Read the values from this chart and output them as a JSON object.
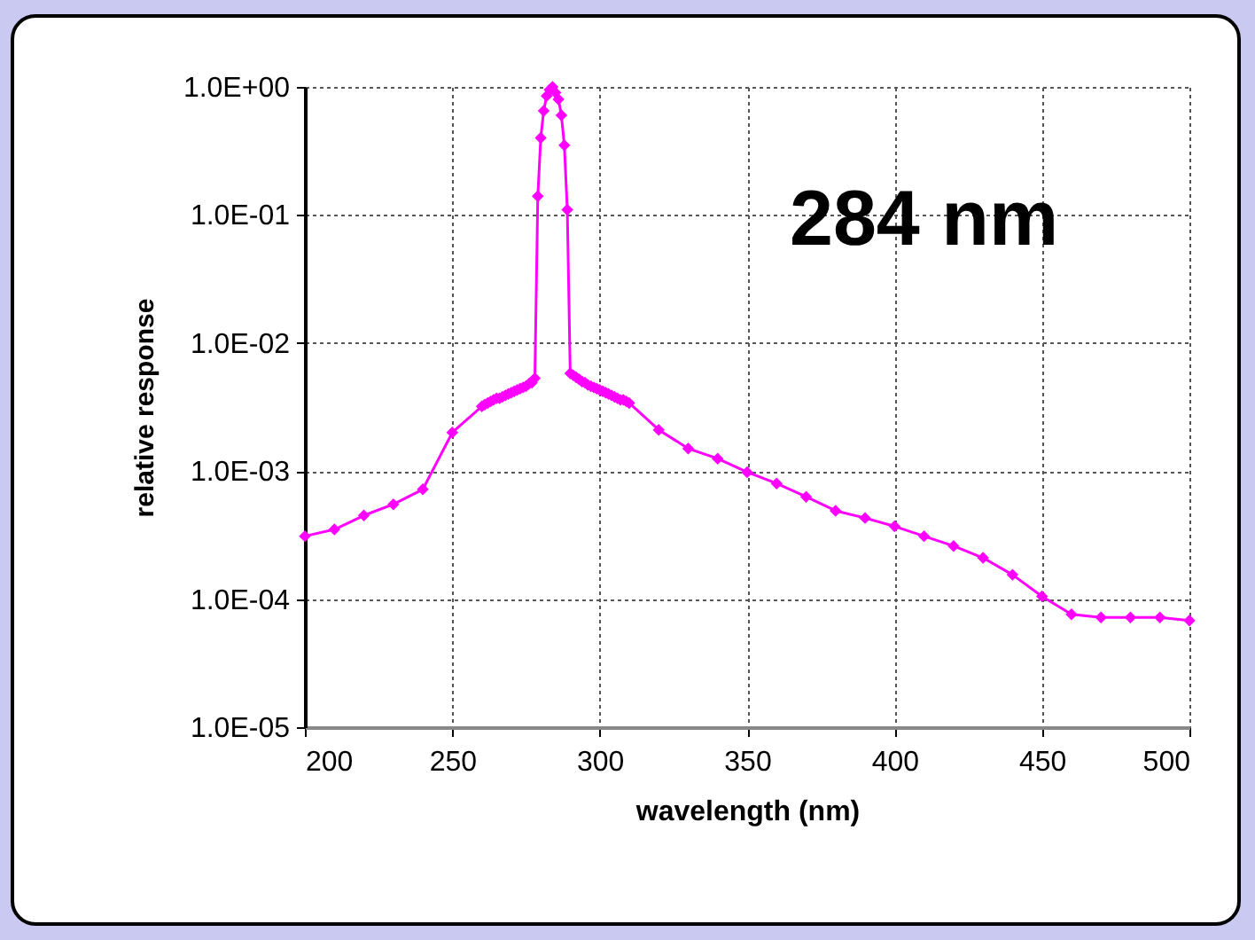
{
  "chart_data": {
    "type": "line",
    "xlabel": "wavelength (nm)",
    "ylabel": "relative response",
    "annotations": [
      "284 nm"
    ],
    "x": [
      200,
      210,
      220,
      230,
      240,
      250,
      260,
      261,
      262,
      263,
      264,
      265,
      266,
      267,
      268,
      269,
      270,
      271,
      272,
      273,
      274,
      275,
      276,
      277,
      278,
      279,
      280,
      281,
      282,
      283,
      284,
      285,
      286,
      287,
      288,
      289,
      290,
      291,
      292,
      293,
      294,
      295,
      296,
      297,
      298,
      299,
      300,
      301,
      302,
      303,
      304,
      305,
      306,
      307,
      308,
      309,
      310,
      320,
      330,
      340,
      350,
      360,
      370,
      380,
      390,
      400,
      410,
      420,
      430,
      440,
      450,
      460,
      470,
      480,
      490,
      500
    ],
    "series": [
      {
        "color": "#ff00ff",
        "values": [
          0.00031,
          0.00035,
          0.00045,
          0.00055,
          0.00072,
          0.002,
          0.0032,
          0.0033,
          0.0034,
          0.0035,
          0.0036,
          0.0037,
          0.0037,
          0.0038,
          0.0039,
          0.004,
          0.0041,
          0.0042,
          0.0043,
          0.0044,
          0.0045,
          0.0046,
          0.0048,
          0.0049,
          0.0053,
          0.14,
          0.4,
          0.65,
          0.85,
          0.95,
          1.0,
          0.9,
          0.8,
          0.6,
          0.35,
          0.11,
          0.0058,
          0.0056,
          0.0054,
          0.0052,
          0.005,
          0.0049,
          0.0047,
          0.0046,
          0.0045,
          0.0044,
          0.0043,
          0.0042,
          0.0041,
          0.004,
          0.0039,
          0.0038,
          0.0037,
          0.0036,
          0.0036,
          0.0035,
          0.0034,
          0.0021,
          0.0015,
          0.00125,
          0.00098,
          0.0008,
          0.00063,
          0.00049,
          0.00043,
          0.00037,
          0.00031,
          0.00026,
          0.00021,
          0.000155,
          0.000105,
          7.6e-05,
          7.2e-05,
          7.2e-05,
          7.2e-05,
          6.8e-05
        ]
      }
    ],
    "xlim": [
      200,
      500
    ],
    "xticks": [
      200,
      250,
      300,
      350,
      400,
      450,
      500
    ],
    "ylim": [
      1e-05,
      1
    ],
    "yticks": [
      {
        "value": 1e-05,
        "label": "1.0E-05"
      },
      {
        "value": 0.0001,
        "label": "1.0E-04"
      },
      {
        "value": 0.001,
        "label": "1.0E-03"
      },
      {
        "value": 0.01,
        "label": "1.0E-02"
      },
      {
        "value": 0.1,
        "label": "1.0E-01"
      },
      {
        "value": 1,
        "label": "1.0E+00"
      }
    ],
    "log": "y",
    "grid": true,
    "marker": "diamond",
    "line_style": "solid"
  }
}
